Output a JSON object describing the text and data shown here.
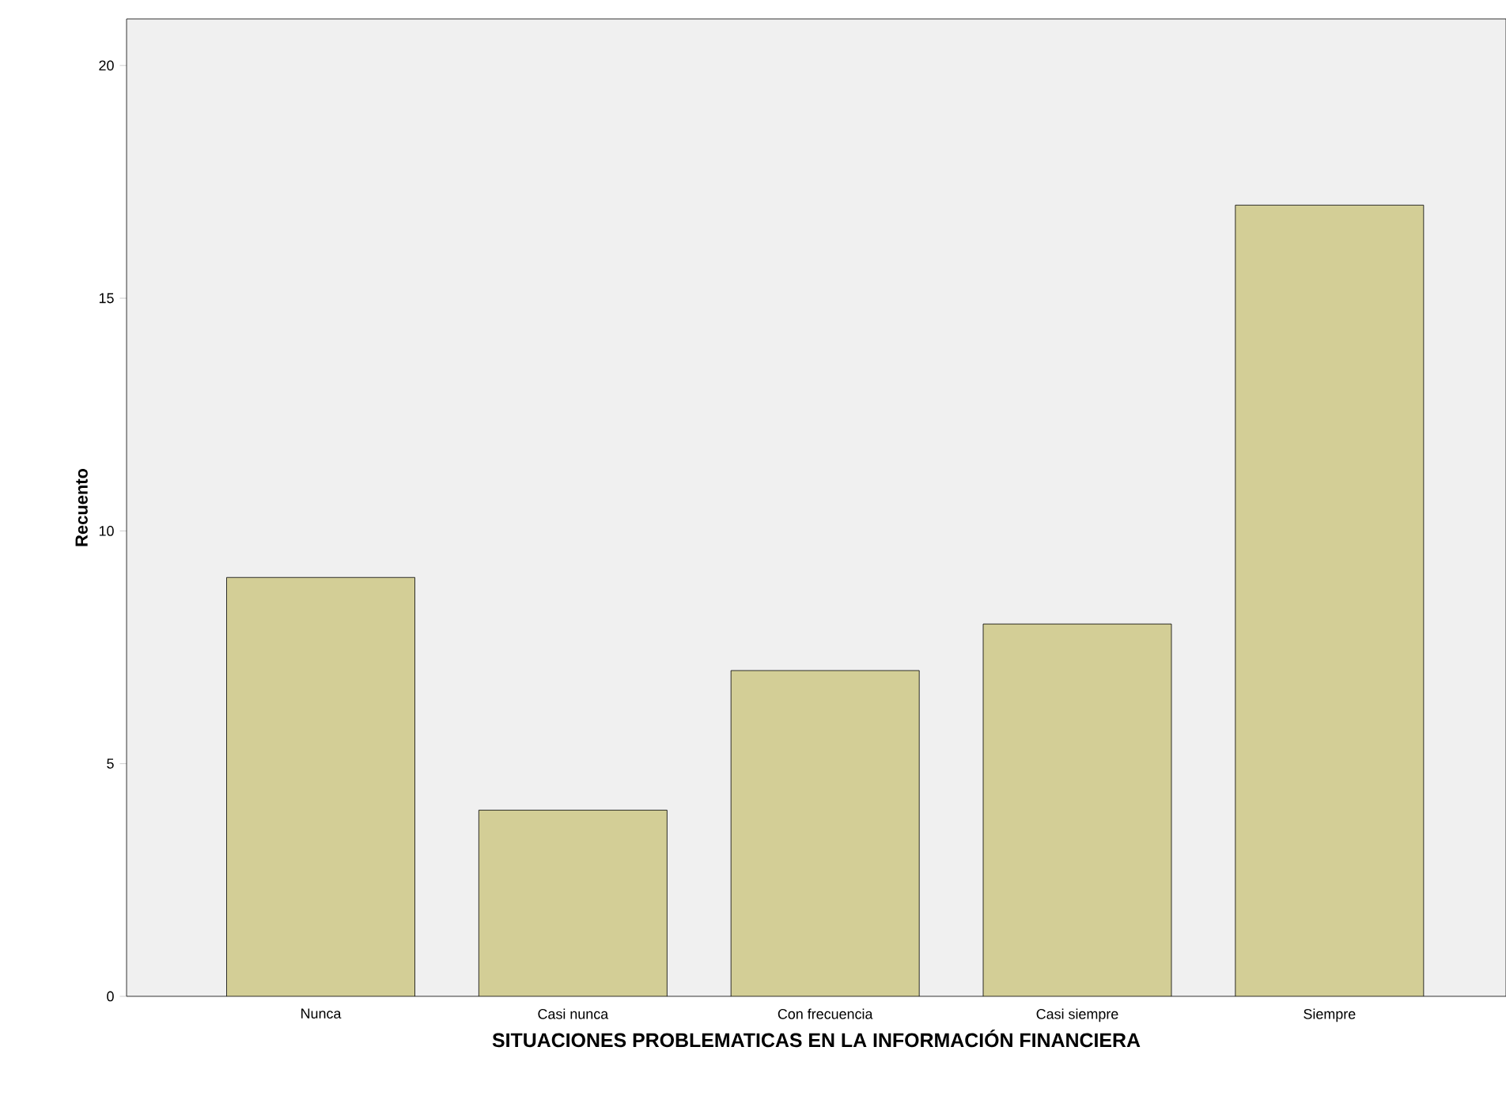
{
  "chart_data": {
    "type": "bar",
    "xlabel": "SITUACIONES PROBLEMATICAS EN LA INFORMACIÓN FINANCIERA",
    "ylabel": "Recuento",
    "categories": [
      "Nunca",
      "Casi nunca",
      "Con frecuencia",
      "Casi siempre",
      "Siempre"
    ],
    "values": [
      9,
      4,
      7,
      8,
      17
    ],
    "color": "#d3ce96",
    "ylim": [
      0,
      21
    ],
    "yticks": [
      0,
      5,
      10,
      15,
      20
    ],
    "grid": false
  }
}
